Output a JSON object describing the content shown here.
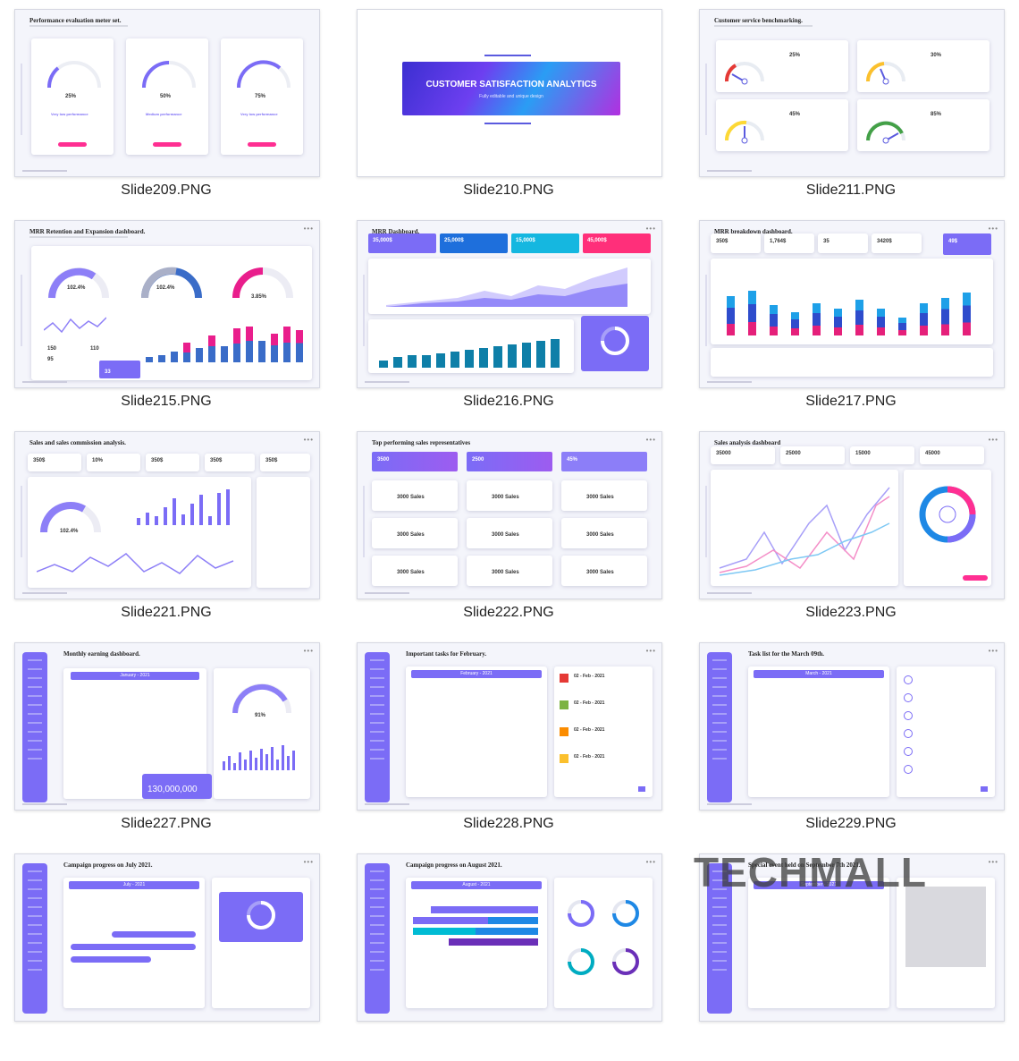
{
  "captions": [
    "Slide209.PNG",
    "Slide210.PNG",
    "Slide211.PNG",
    "Slide215.PNG",
    "Slide216.PNG",
    "Slide217.PNG",
    "Slide221.PNG",
    "Slide222.PNG",
    "Slide223.PNG",
    "Slide227.PNG",
    "Slide228.PNG",
    "Slide229.PNG"
  ],
  "s209": {
    "title": "Performance evaluation meter set.",
    "v1": "25%",
    "v2": "50%",
    "v3": "75%",
    "l1": "Very low performance",
    "l2": "Medium performance",
    "l3": "Very low performance"
  },
  "s210": {
    "title": "CUSTOMER SATISFACTION ANALYTICS",
    "sub": "Fully editable and unique design"
  },
  "s211": {
    "title": "Customer service benchmarking.",
    "v1": "25%",
    "v2": "30%",
    "v3": "45%",
    "v4": "85%"
  },
  "s215": {
    "title": "MRR Retention and Expansion dashboard.",
    "p1": "102.4%",
    "p2": "102.4%",
    "p3": "3.85%",
    "n1": "150",
    "n2": "110",
    "n3": "95",
    "n4": "33"
  },
  "s216": {
    "title": "MRR Dashboard.",
    "k1": "35,000$",
    "k2": "25,000$",
    "k3": "15,000$",
    "k4": "45,000$"
  },
  "s217": {
    "title": "MRR breakdown dashboard.",
    "k1": "350$",
    "k2": "1,764$",
    "k3": "35",
    "k4": "3420$",
    "k5": "49$"
  },
  "s221": {
    "title": "Sales and sales commission analysis.",
    "k1": "350$",
    "k2": "10%",
    "k3": "350$",
    "k4": "350$",
    "k5": "350$",
    "p1": "102.4%"
  },
  "s222": {
    "title": "Top performing sales representatives",
    "k1": "3500",
    "k2": "2500",
    "k3": "45%",
    "item": "3000 Sales"
  },
  "s223": {
    "title": "Sales analysis dashboard",
    "k1": "35000",
    "k2": "25000",
    "k3": "15000",
    "k4": "45000"
  },
  "s227": {
    "title": "Monthly earning dashboard.",
    "month": "January - 2021",
    "pct": "91%",
    "total": "130,000,000"
  },
  "s228": {
    "title": "Important tasks for February.",
    "month": "February - 2021",
    "d1": "02 - Feb - 2021",
    "d2": "02 - Feb - 2021",
    "d3": "02 - Feb - 2021",
    "d4": "02 - Feb - 2021"
  },
  "s229": {
    "title": "Task list for the March 09th.",
    "month": "March - 2021"
  },
  "bottom": {
    "t1": "Campaign progress on July 2021.",
    "t2": "Campaign progress on August 2021.",
    "t3": "Special event held on September 7th 2021.",
    "m1": "July - 2021",
    "m2": "August - 2021",
    "m3": "September - 2021"
  },
  "watermark": "TECHMALL",
  "colors": {
    "accent": "#7b6cf6",
    "pink": "#ff2f92",
    "blue": "#1e88e5",
    "teal": "#00bcd4"
  }
}
